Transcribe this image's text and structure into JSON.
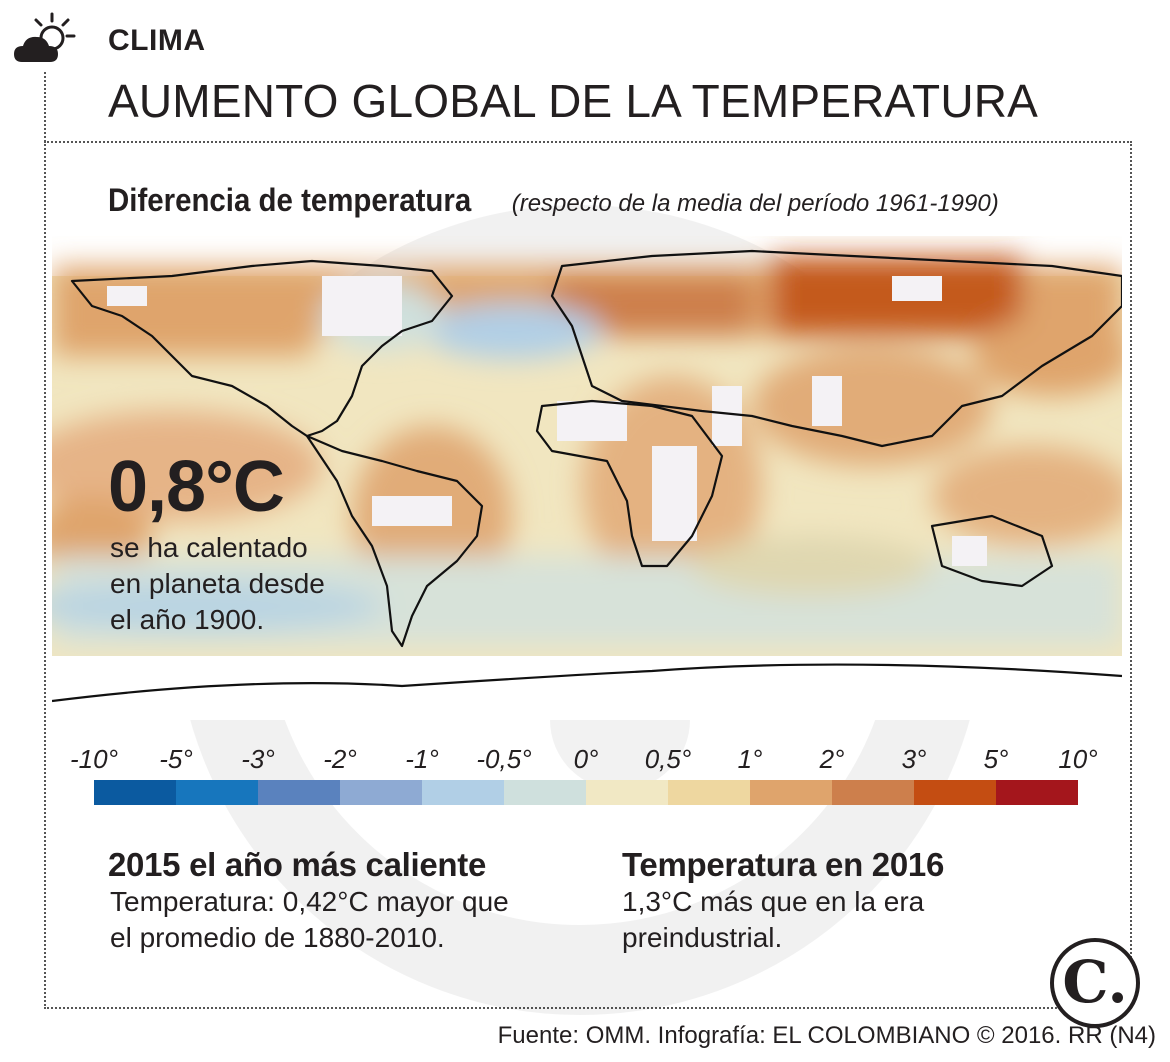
{
  "header": {
    "section": "CLIMA",
    "title": "AUMENTO GLOBAL DE LA TEMPERATURA",
    "icon": "sun-cloud-icon"
  },
  "map": {
    "heading_bold": "Diferencia de temperatura",
    "heading_italic": "respecto de la media del período 1961-1990",
    "big_value": "0,8°C",
    "value_description": [
      "se ha calentado",
      "en planeta desde",
      "el año 1900."
    ]
  },
  "scale": {
    "labels": [
      "-10°",
      "-5°",
      "-3°",
      "-2°",
      "-1°",
      "-0,5°",
      "0°",
      "0,5°",
      "1°",
      "2°",
      "3°",
      "5°",
      "10°"
    ],
    "colors": [
      "#0b5aa0",
      "#1776bd",
      "#5a82be",
      "#8eaad3",
      "#b1cfe6",
      "#cfe0dd",
      "#f1e8c4",
      "#eed7a0",
      "#dfa46c",
      "#cd7f4c",
      "#c44d12",
      "#a4161c"
    ]
  },
  "facts": [
    {
      "title": "2015 el año más caliente",
      "text": [
        "Temperatura: 0,42°C mayor que",
        "el promedio de 1880-2010."
      ]
    },
    {
      "title": "Temperatura en 2016",
      "text": [
        "1,3°C más que en la era",
        "preindustrial."
      ]
    }
  ],
  "footer": {
    "source": "Fuente: OMM. Infografía: EL COLOMBIANO © 2016. RR (N4)",
    "logo_letter": "C."
  }
}
